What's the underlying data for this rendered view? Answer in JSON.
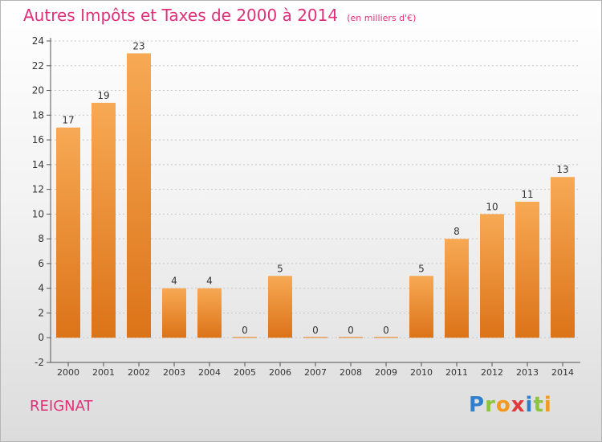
{
  "title": "Autres Impôts et Taxes de 2000 à 2014",
  "subtitle": "(en milliers d'€)",
  "commune": "REIGNAT",
  "brand": {
    "text": "Proxiti",
    "letters": [
      {
        "char": "P",
        "color": "#2f7fd0"
      },
      {
        "char": "r",
        "color": "#8cc43d"
      },
      {
        "char": "o",
        "color": "#f39a1e"
      },
      {
        "char": "x",
        "color": "#e03a3a"
      },
      {
        "char": "i",
        "color": "#2f7fd0"
      },
      {
        "char": "t",
        "color": "#8cc43d"
      },
      {
        "char": "i",
        "color": "#f39a1e"
      }
    ]
  },
  "colors": {
    "accent": "#e0307a",
    "bar_light": "#f7a954",
    "bar_dark": "#dc7318",
    "axis": "#555555",
    "grid": "#c8c8c8"
  },
  "chart_data": {
    "type": "bar",
    "categories": [
      "2000",
      "2001",
      "2002",
      "2003",
      "2004",
      "2005",
      "2006",
      "2007",
      "2008",
      "2009",
      "2010",
      "2011",
      "2012",
      "2013",
      "2014"
    ],
    "values": [
      17,
      19,
      23,
      4,
      4,
      0,
      5,
      0,
      0,
      0,
      5,
      8,
      10,
      11,
      13
    ],
    "ylim": [
      -2,
      24
    ],
    "yticks": [
      -2,
      0,
      2,
      4,
      6,
      8,
      10,
      12,
      14,
      16,
      18,
      20,
      22,
      24
    ],
    "grid": true,
    "legend": "none"
  }
}
